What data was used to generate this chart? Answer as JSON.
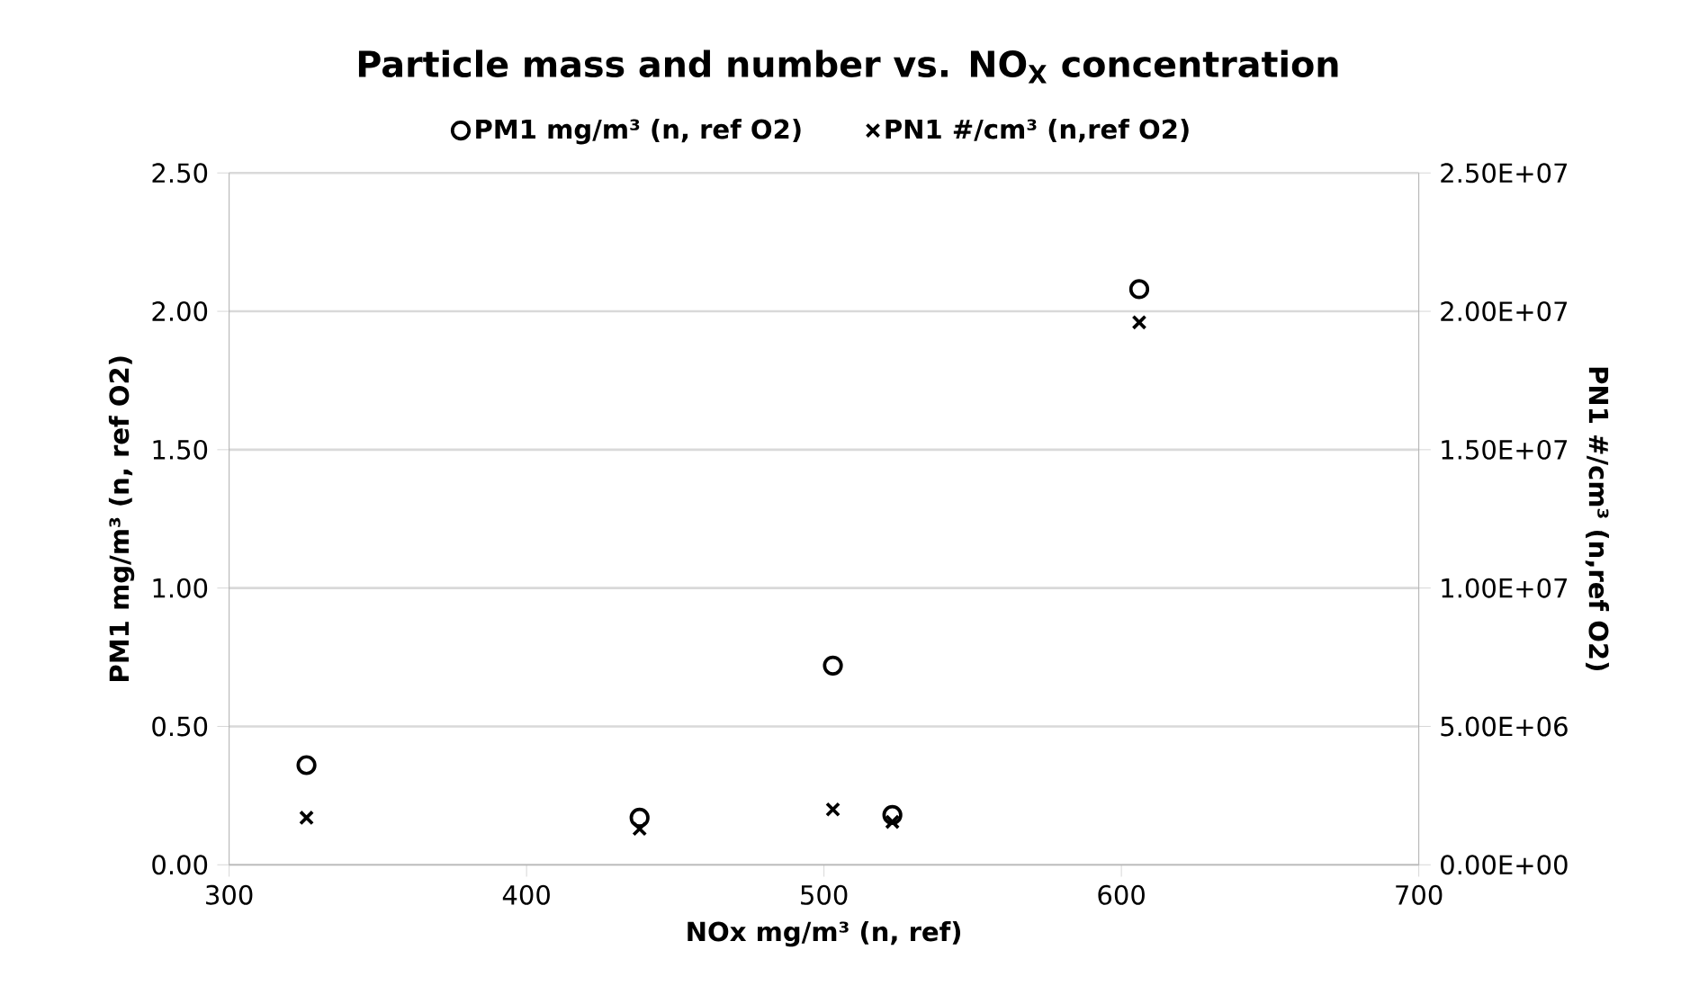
{
  "chart_data": {
    "type": "scatter",
    "title": "Particle mass and number vs. NO$_{X}$ concentration",
    "xlabel": "NOx mg/m³ (n, ref)",
    "ylabel": "PM1 mg/m³ (n, ref O2)",
    "y2label": "PN1 #/cm³ (n,ref O2)",
    "x": [
      326,
      438,
      503,
      523,
      606
    ],
    "series": [
      {
        "name": "PM1 mg/m³ (n, ref O2)",
        "color": "#000000",
        "marker": "circle",
        "values": [
          0.36,
          0.17,
          0.72,
          0.18,
          2.08
        ]
      },
      {
        "name": "PN1 #/cm³ (n,ref O2)",
        "color": "#000000",
        "marker": "cross",
        "axis": "y2",
        "values": [
          1700000.0,
          1300000.0,
          2000000.0,
          1550000.0,
          19600000.0
        ]
      }
    ],
    "xlim": [
      300,
      700
    ],
    "xticks": [
      300,
      400,
      500,
      600,
      700
    ],
    "ylim": [
      0,
      2.5
    ],
    "yticks": [
      {
        "value": 0,
        "label": "0.00"
      },
      {
        "value": 0.5,
        "label": "0.50"
      },
      {
        "value": 1,
        "label": "1.00"
      },
      {
        "value": 1.5,
        "label": "1.50"
      },
      {
        "value": 2,
        "label": "2.00"
      },
      {
        "value": 2.5,
        "label": "2.50"
      }
    ],
    "y2lim": [
      0,
      25000000
    ],
    "y2ticks": [
      {
        "value": 0,
        "label": "0.00E+00"
      },
      {
        "value": 5000000,
        "label": "5.00E+06"
      },
      {
        "value": 10000000,
        "label": "1.00E+07"
      },
      {
        "value": 15000000,
        "label": "1.50E+07"
      },
      {
        "value": 20000000,
        "label": "2.00E+07"
      },
      {
        "value": 25000000,
        "label": "2.50E+07"
      }
    ],
    "grid": "y",
    "legend": "top"
  }
}
